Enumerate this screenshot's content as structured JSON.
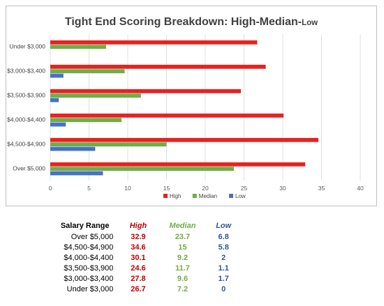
{
  "chart_data": {
    "type": "bar",
    "orientation": "horizontal",
    "title": "Tight End Scoring Breakdown: High-Median-",
    "title_suffix": "Low",
    "categories": [
      "Under $3,000",
      "$3,000-$3,400",
      "$3,500-$3,900",
      "$4,000-$4,400",
      "$4,500-$4,900",
      "Over $5,000"
    ],
    "series": [
      {
        "name": "High",
        "color": "#e8221f",
        "values": [
          26.7,
          27.8,
          24.6,
          30.1,
          34.6,
          32.9
        ]
      },
      {
        "name": "Median",
        "color": "#70ad47",
        "values": [
          7.2,
          9.6,
          11.7,
          9.2,
          15,
          23.7
        ]
      },
      {
        "name": "Low",
        "color": "#4472c4",
        "values": [
          0,
          1.7,
          1.1,
          2,
          5.8,
          6.8
        ]
      }
    ],
    "xlim": [
      0,
      40
    ],
    "xticks": [
      0,
      5,
      10,
      15,
      20,
      25,
      30,
      35,
      40
    ],
    "grid": true,
    "legend_position": "bottom"
  },
  "table": {
    "headers": {
      "range": "Salary Range",
      "high": "High",
      "median": "Median",
      "low": "Low"
    },
    "rows": [
      {
        "range": "Over $5,000",
        "high": "32.9",
        "median": "23.7",
        "low": "6.8"
      },
      {
        "range": "$4,500-$4,900",
        "high": "34.6",
        "median": "15",
        "low": "5.8"
      },
      {
        "range": "$4,000-$4,400",
        "high": "30.1",
        "median": "9.2",
        "low": "2"
      },
      {
        "range": "$3,500-$3,900",
        "high": "24.6",
        "median": "11.7",
        "low": "1.1"
      },
      {
        "range": "$3,000-$3,400",
        "high": "27.8",
        "median": "9.6",
        "low": "1.7"
      },
      {
        "range": "Under $3,000",
        "high": "26.7",
        "median": "7.2",
        "low": "0"
      }
    ]
  }
}
